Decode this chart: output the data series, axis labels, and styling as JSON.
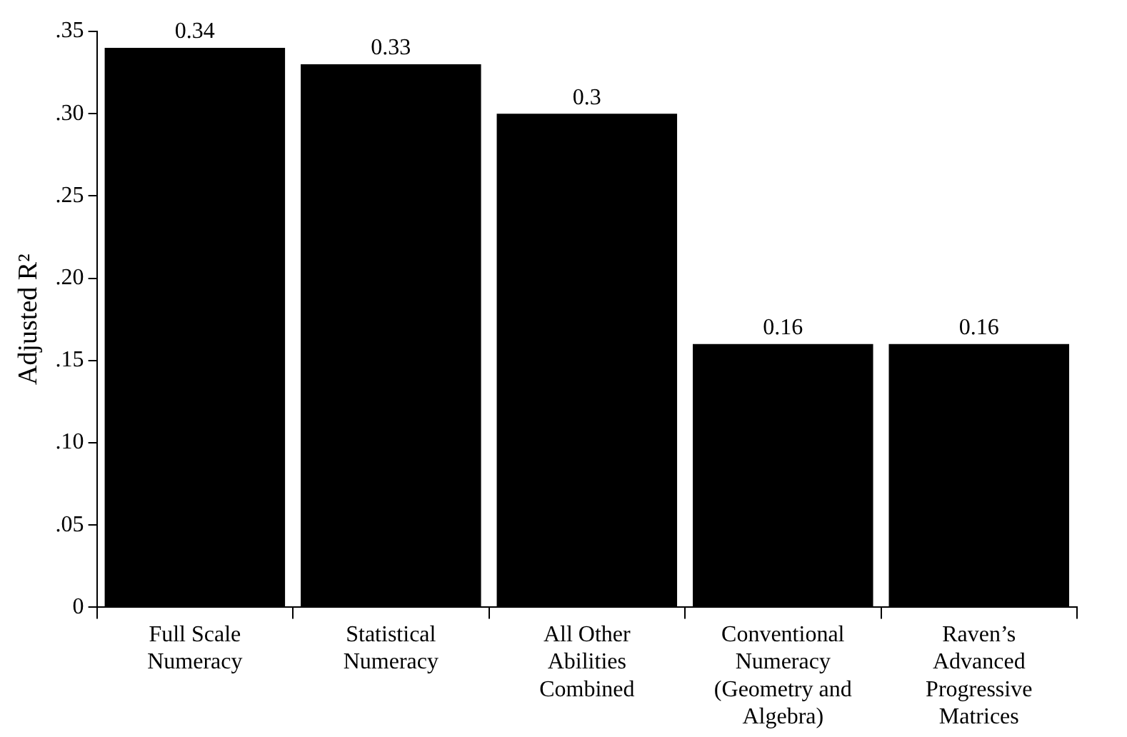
{
  "chart_data": {
    "type": "bar",
    "ylabel": "Adjusted R²",
    "categories": [
      "Full Scale\nNumeracy",
      "Statistical\nNumeracy",
      "All Other\nAbilities\nCombined",
      "Conventional\nNumeracy\n(Geometry and\nAlgebra)",
      "Raven’s\nAdvanced\nProgressive\nMatrices"
    ],
    "values": [
      0.34,
      0.33,
      0.3,
      0.16,
      0.16
    ],
    "color": "#000000",
    "ylim": [
      0,
      0.35
    ],
    "yticks": [
      0,
      {
        "value": 0.05,
        "label": ".05"
      },
      {
        "value": 0.1,
        "label": ".10"
      },
      {
        "value": 0.15,
        "label": ".15"
      },
      {
        "value": 0.2,
        "label": ".20"
      },
      {
        "value": 0.25,
        "label": ".25"
      },
      {
        "value": 0.3,
        "label": ".30"
      },
      {
        "value": 0.35,
        "label": ".35"
      }
    ],
    "data_labels": true
  }
}
